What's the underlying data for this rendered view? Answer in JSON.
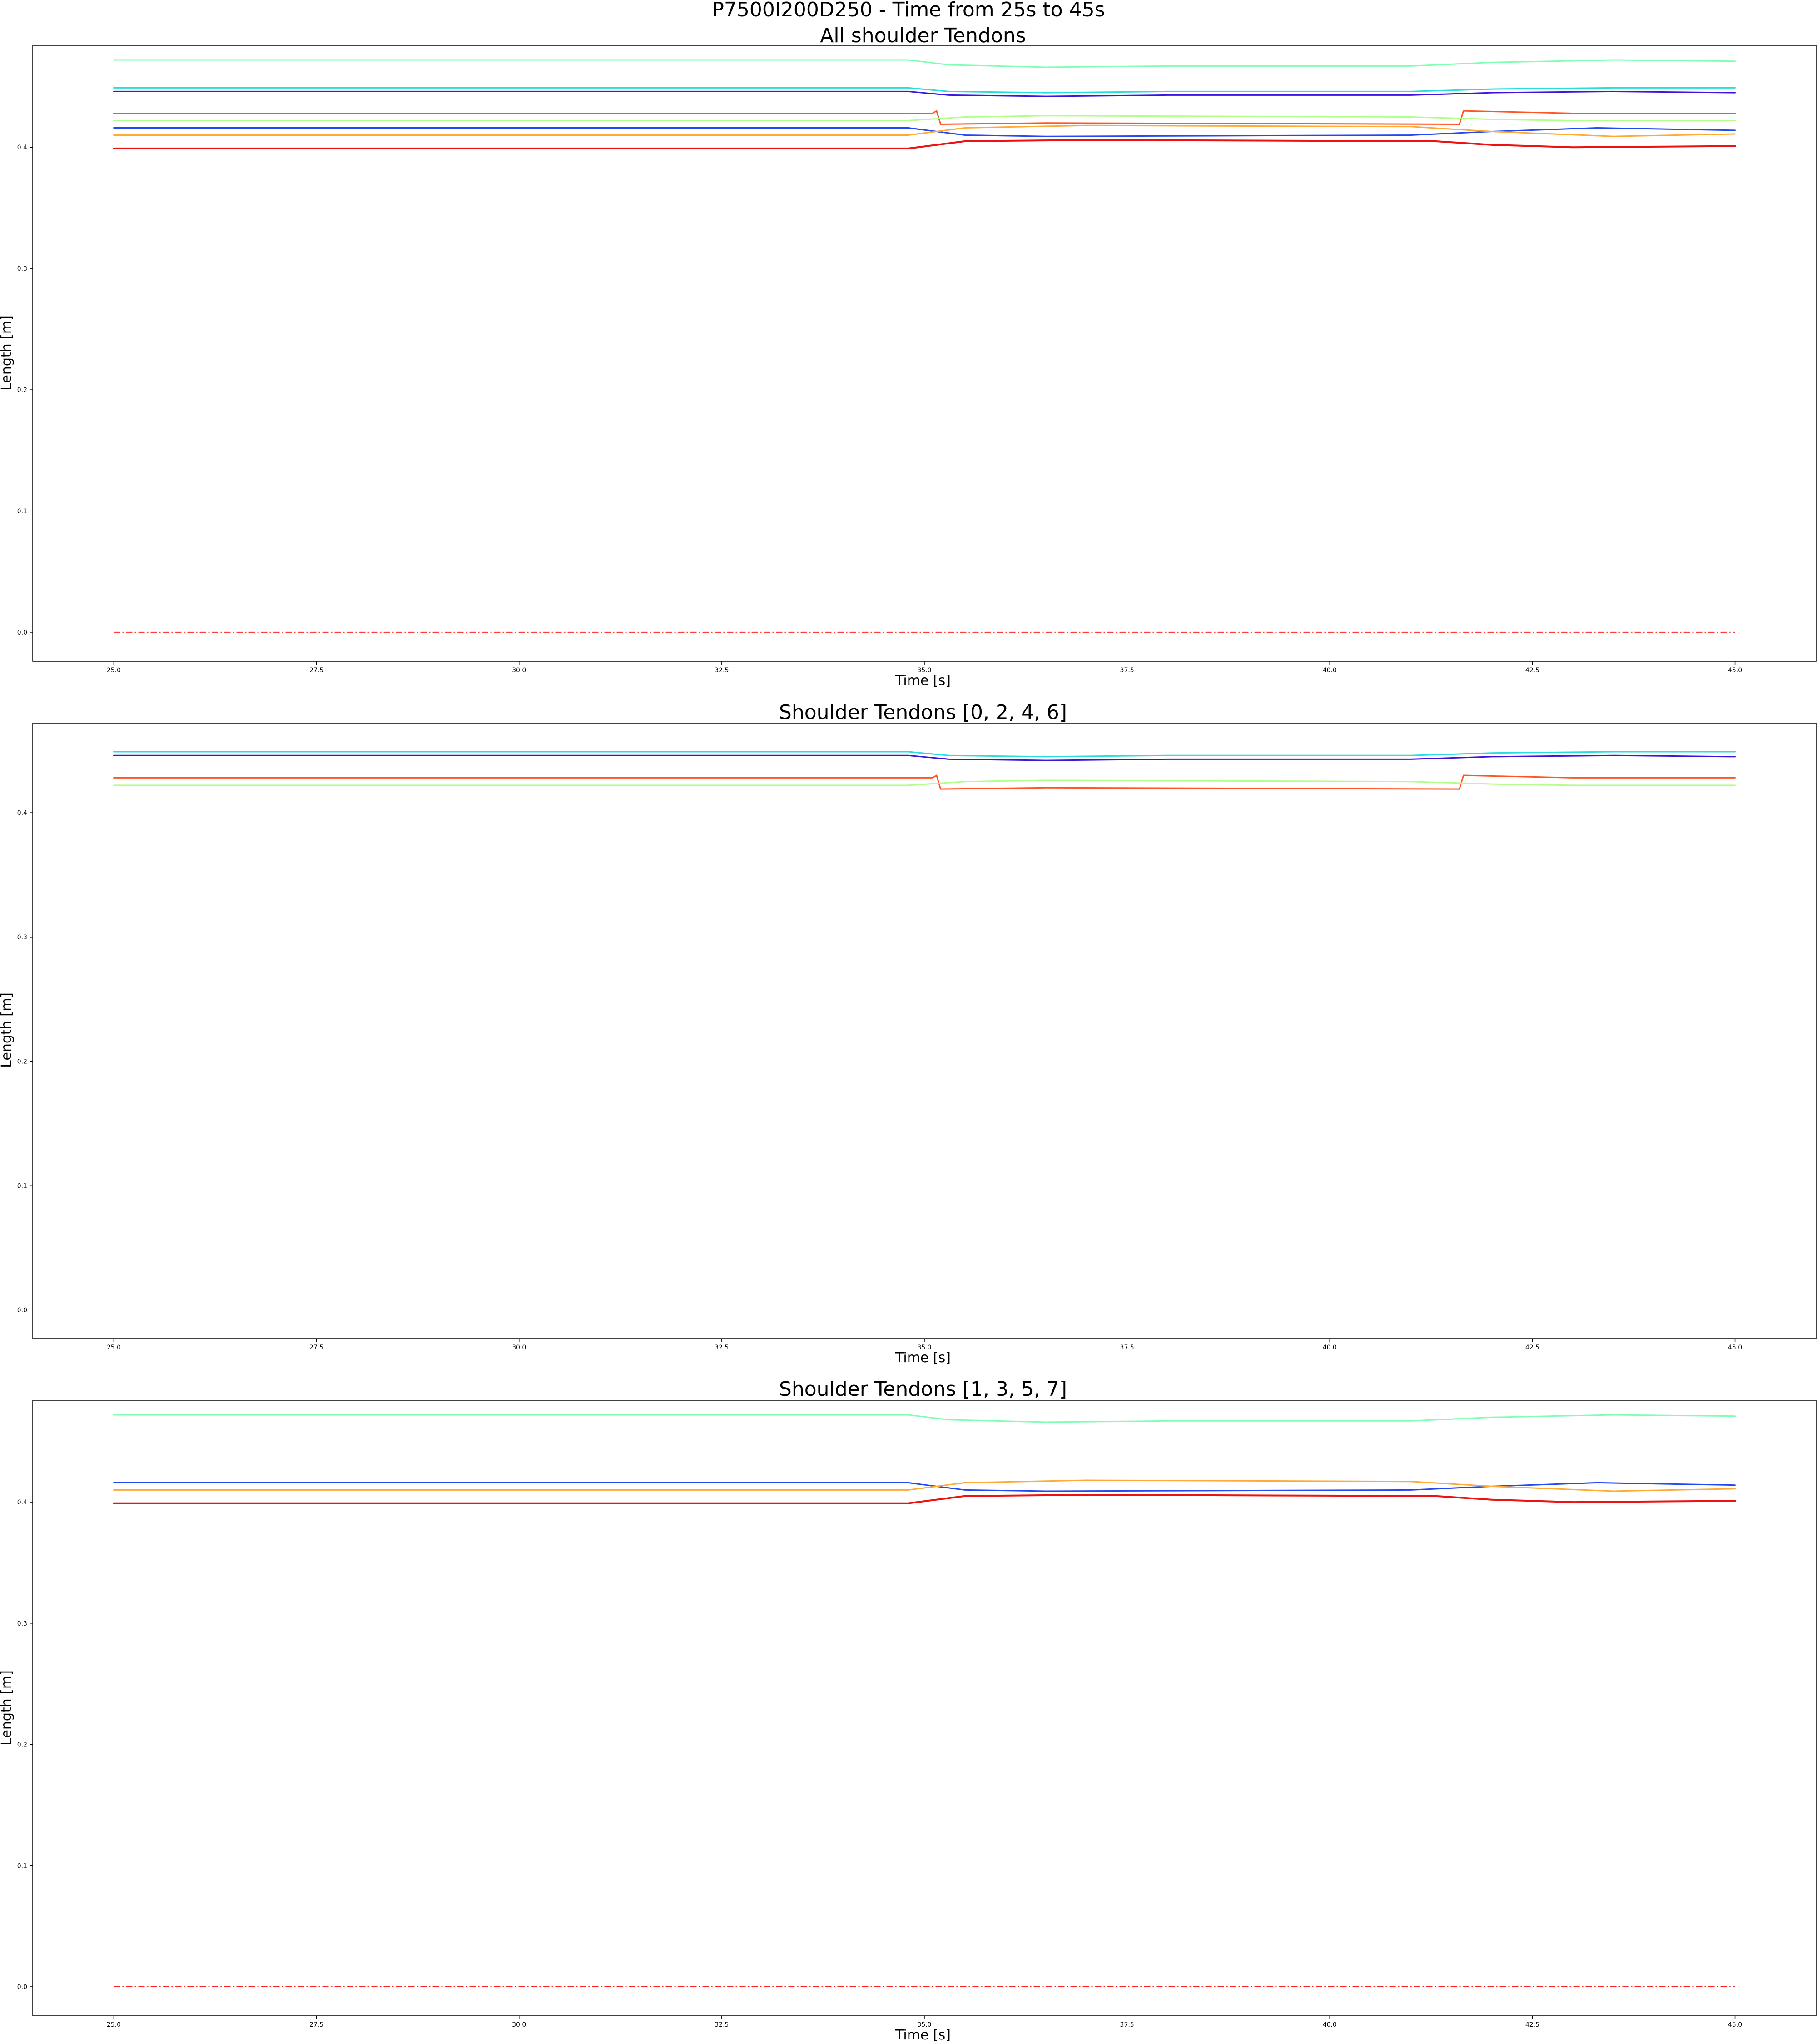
{
  "figure": {
    "suptitle": "P7500I200D250 - Time from 25s to 45s"
  },
  "chart_data": [
    {
      "type": "line",
      "title": "All shoulder Tendons",
      "xlabel": "Time [s]",
      "ylabel": "Length [m]",
      "xlim": [
        24.0,
        46.0
      ],
      "ylim": [
        -0.024,
        0.484
      ],
      "xticks": [
        "25.0",
        "27.5",
        "30.0",
        "32.5",
        "35.0",
        "37.5",
        "40.0",
        "42.5",
        "45.0"
      ],
      "yticks": [
        "0.0",
        "0.1",
        "0.2",
        "0.3",
        "0.4"
      ],
      "grid": false,
      "series": [
        {
          "color": "#80ffb4",
          "linewidth": 3,
          "dashed": false,
          "points": [
            [
              25.0,
              0.472
            ],
            [
              34.8,
              0.472
            ],
            [
              35.3,
              0.468
            ],
            [
              36.5,
              0.466
            ],
            [
              38.0,
              0.467
            ],
            [
              41.0,
              0.467
            ],
            [
              42.0,
              0.47
            ],
            [
              43.5,
              0.472
            ],
            [
              45.0,
              0.471
            ]
          ]
        },
        {
          "color": "#2adddd",
          "linewidth": 3,
          "dashed": false,
          "points": [
            [
              25.0,
              0.449
            ],
            [
              34.8,
              0.449
            ],
            [
              35.3,
              0.446
            ],
            [
              36.5,
              0.445
            ],
            [
              38.0,
              0.446
            ],
            [
              41.0,
              0.446
            ],
            [
              42.0,
              0.448
            ],
            [
              43.5,
              0.449
            ],
            [
              45.0,
              0.449
            ]
          ]
        },
        {
          "color": "#3a14e0",
          "linewidth": 3,
          "dashed": false,
          "points": [
            [
              25.0,
              0.446
            ],
            [
              34.8,
              0.446
            ],
            [
              35.3,
              0.443
            ],
            [
              36.5,
              0.442
            ],
            [
              38.0,
              0.443
            ],
            [
              41.0,
              0.443
            ],
            [
              42.0,
              0.445
            ],
            [
              43.5,
              0.446
            ],
            [
              45.0,
              0.445
            ]
          ]
        },
        {
          "color": "#ff5522",
          "linewidth": 3,
          "dashed": false,
          "points": [
            [
              25.0,
              0.428
            ],
            [
              35.1,
              0.428
            ],
            [
              35.15,
              0.43
            ],
            [
              35.2,
              0.419
            ],
            [
              36.5,
              0.42
            ],
            [
              41.6,
              0.419
            ],
            [
              41.65,
              0.43
            ],
            [
              43.0,
              0.428
            ],
            [
              45.0,
              0.428
            ]
          ]
        },
        {
          "color": "#b0ff88",
          "linewidth": 3,
          "dashed": false,
          "points": [
            [
              25.0,
              0.422
            ],
            [
              34.8,
              0.422
            ],
            [
              35.5,
              0.425
            ],
            [
              36.5,
              0.426
            ],
            [
              41.0,
              0.425
            ],
            [
              42.0,
              0.423
            ],
            [
              43.0,
              0.422
            ],
            [
              45.0,
              0.422
            ]
          ]
        },
        {
          "color": "#2448f0",
          "linewidth": 3,
          "dashed": false,
          "points": [
            [
              25.0,
              0.416
            ],
            [
              34.8,
              0.416
            ],
            [
              35.5,
              0.41
            ],
            [
              36.5,
              0.409
            ],
            [
              41.0,
              0.41
            ],
            [
              42.0,
              0.413
            ],
            [
              43.3,
              0.416
            ],
            [
              45.0,
              0.414
            ]
          ]
        },
        {
          "color": "#ffaa33",
          "linewidth": 3,
          "dashed": false,
          "points": [
            [
              25.0,
              0.41
            ],
            [
              34.8,
              0.41
            ],
            [
              35.5,
              0.416
            ],
            [
              37.0,
              0.418
            ],
            [
              41.0,
              0.417
            ],
            [
              42.0,
              0.413
            ],
            [
              43.5,
              0.409
            ],
            [
              45.0,
              0.411
            ]
          ]
        },
        {
          "color": "#ee1111",
          "linewidth": 4,
          "dashed": false,
          "points": [
            [
              25.0,
              0.399
            ],
            [
              34.8,
              0.399
            ],
            [
              35.5,
              0.405
            ],
            [
              37.0,
              0.406
            ],
            [
              41.3,
              0.405
            ],
            [
              42.0,
              0.402
            ],
            [
              43.0,
              0.4
            ],
            [
              45.0,
              0.401
            ]
          ]
        },
        {
          "color": "#ff2222",
          "linewidth": 2,
          "dashed": true,
          "points": [
            [
              25.0,
              0.0
            ],
            [
              45.0,
              0.0
            ]
          ]
        }
      ]
    },
    {
      "type": "line",
      "title": "Shoulder Tendons [0, 2, 4, 6]",
      "xlabel": "Time [s]",
      "ylabel": "Length [m]",
      "xlim": [
        24.0,
        46.0
      ],
      "ylim": [
        -0.023,
        0.472
      ],
      "xticks": [
        "25.0",
        "27.5",
        "30.0",
        "32.5",
        "35.0",
        "37.5",
        "40.0",
        "42.5",
        "45.0"
      ],
      "yticks": [
        "0.0",
        "0.1",
        "0.2",
        "0.3",
        "0.4"
      ],
      "grid": false,
      "series": [
        {
          "color": "#2adddd",
          "linewidth": 3,
          "dashed": false,
          "points": [
            [
              25.0,
              0.449
            ],
            [
              34.8,
              0.449
            ],
            [
              35.3,
              0.446
            ],
            [
              36.5,
              0.445
            ],
            [
              38.0,
              0.446
            ],
            [
              41.0,
              0.446
            ],
            [
              42.0,
              0.448
            ],
            [
              43.5,
              0.449
            ],
            [
              45.0,
              0.449
            ]
          ]
        },
        {
          "color": "#3a14e0",
          "linewidth": 3,
          "dashed": false,
          "points": [
            [
              25.0,
              0.446
            ],
            [
              34.8,
              0.446
            ],
            [
              35.3,
              0.443
            ],
            [
              36.5,
              0.442
            ],
            [
              38.0,
              0.443
            ],
            [
              41.0,
              0.443
            ],
            [
              42.0,
              0.445
            ],
            [
              43.5,
              0.446
            ],
            [
              45.0,
              0.445
            ]
          ]
        },
        {
          "color": "#ff5522",
          "linewidth": 3,
          "dashed": false,
          "points": [
            [
              25.0,
              0.428
            ],
            [
              35.1,
              0.428
            ],
            [
              35.15,
              0.43
            ],
            [
              35.2,
              0.419
            ],
            [
              36.5,
              0.42
            ],
            [
              41.6,
              0.419
            ],
            [
              41.65,
              0.43
            ],
            [
              43.0,
              0.428
            ],
            [
              45.0,
              0.428
            ]
          ]
        },
        {
          "color": "#b0ff88",
          "linewidth": 3,
          "dashed": false,
          "points": [
            [
              25.0,
              0.422
            ],
            [
              34.8,
              0.422
            ],
            [
              35.5,
              0.425
            ],
            [
              36.5,
              0.426
            ],
            [
              41.0,
              0.425
            ],
            [
              42.0,
              0.423
            ],
            [
              43.0,
              0.422
            ],
            [
              45.0,
              0.422
            ]
          ]
        },
        {
          "color": "#ff7744",
          "linewidth": 2,
          "dashed": true,
          "points": [
            [
              25.0,
              0.0
            ],
            [
              45.0,
              0.0
            ]
          ]
        }
      ]
    },
    {
      "type": "line",
      "title": "Shoulder Tendons  [1, 3, 5, 7]",
      "xlabel": "Time [s]",
      "ylabel": "Length [m]",
      "xlim": [
        24.0,
        46.0
      ],
      "ylim": [
        -0.024,
        0.484
      ],
      "xticks": [
        "25.0",
        "27.5",
        "30.0",
        "32.5",
        "35.0",
        "37.5",
        "40.0",
        "42.5",
        "45.0"
      ],
      "yticks": [
        "0.0",
        "0.1",
        "0.2",
        "0.3",
        "0.4"
      ],
      "grid": false,
      "series": [
        {
          "color": "#80ffb4",
          "linewidth": 3,
          "dashed": false,
          "points": [
            [
              25.0,
              0.472
            ],
            [
              34.8,
              0.472
            ],
            [
              35.3,
              0.468
            ],
            [
              36.5,
              0.466
            ],
            [
              38.0,
              0.467
            ],
            [
              41.0,
              0.467
            ],
            [
              42.0,
              0.47
            ],
            [
              43.5,
              0.472
            ],
            [
              45.0,
              0.471
            ]
          ]
        },
        {
          "color": "#2448f0",
          "linewidth": 3,
          "dashed": false,
          "points": [
            [
              25.0,
              0.416
            ],
            [
              34.8,
              0.416
            ],
            [
              35.5,
              0.41
            ],
            [
              36.5,
              0.409
            ],
            [
              41.0,
              0.41
            ],
            [
              42.0,
              0.413
            ],
            [
              43.3,
              0.416
            ],
            [
              45.0,
              0.414
            ]
          ]
        },
        {
          "color": "#ffaa33",
          "linewidth": 3,
          "dashed": false,
          "points": [
            [
              25.0,
              0.41
            ],
            [
              34.8,
              0.41
            ],
            [
              35.5,
              0.416
            ],
            [
              37.0,
              0.418
            ],
            [
              41.0,
              0.417
            ],
            [
              42.0,
              0.413
            ],
            [
              43.5,
              0.409
            ],
            [
              45.0,
              0.411
            ]
          ]
        },
        {
          "color": "#ee1111",
          "linewidth": 4,
          "dashed": false,
          "points": [
            [
              25.0,
              0.399
            ],
            [
              34.8,
              0.399
            ],
            [
              35.5,
              0.405
            ],
            [
              37.0,
              0.406
            ],
            [
              41.3,
              0.405
            ],
            [
              42.0,
              0.402
            ],
            [
              43.0,
              0.4
            ],
            [
              45.0,
              0.401
            ]
          ]
        },
        {
          "color": "#ff2222",
          "linewidth": 2,
          "dashed": true,
          "points": [
            [
              25.0,
              0.0
            ],
            [
              45.0,
              0.0
            ]
          ]
        }
      ]
    }
  ]
}
